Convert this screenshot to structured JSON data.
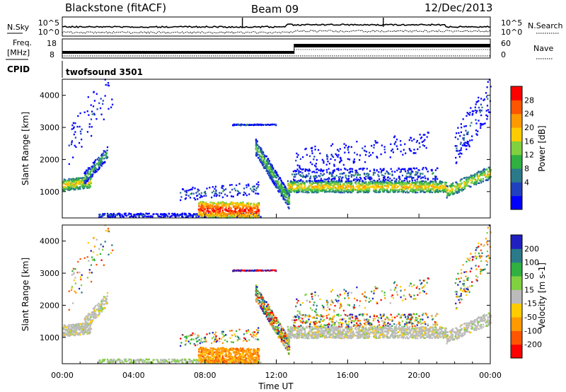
{
  "header": {
    "station": "Blackstone (fitACF)",
    "beam": "Beam 09",
    "date": "12/Dec/2013"
  },
  "noise_panel": {
    "left_label": "N.Sky",
    "right_label": "N.Search",
    "y_ticks": [
      "10^5",
      "10^0"
    ]
  },
  "freq_panel": {
    "left_label_1": "Freq.",
    "left_label_2": "[MHz]",
    "left_ticks": [
      "18",
      "8"
    ],
    "right_label": "Nave",
    "right_ticks": [
      "60",
      "0"
    ]
  },
  "cpid": {
    "label": "CPID",
    "value": "twofsound 3501"
  },
  "colors": {
    "power_scale": [
      "#0000ff",
      "#2040c0",
      "#2a7a8a",
      "#30b040",
      "#80d040",
      "#ffcc00",
      "#ff9900",
      "#ff5500",
      "#ff0000"
    ],
    "velocity_scale": [
      "#2020c0",
      "#2a7a8a",
      "#30b040",
      "#80d040",
      "#bbbbbb",
      "#ffcc00",
      "#ff9900",
      "#ff5500",
      "#ff0000"
    ]
  },
  "chart_data": [
    {
      "type": "heatmap",
      "ylabel": "Slant Range [km]",
      "y_ticks": [
        "4000",
        "3000",
        "2000",
        "1000"
      ],
      "ylim": [
        180,
        4500
      ],
      "colorbar_label": "Power [dB]",
      "colorbar_ticks": [
        "28",
        "24",
        "20",
        "16",
        "12",
        "8",
        "4"
      ],
      "color_range": [
        0,
        32
      ]
    },
    {
      "type": "heatmap",
      "ylabel": "Slant Range [km]",
      "y_ticks": [
        "4000",
        "3000",
        "2000",
        "1000"
      ],
      "ylim": [
        180,
        4500
      ],
      "colorbar_label": "Velocity [m s-1]",
      "colorbar_ticks": [
        "200",
        "100",
        "50",
        "15",
        "-15",
        "-50",
        "-100",
        "-200"
      ],
      "xlabel": "Time UT",
      "x_ticks": [
        "00:00",
        "04:00",
        "08:00",
        "12:00",
        "16:00",
        "20:00",
        "00:00"
      ]
    }
  ]
}
